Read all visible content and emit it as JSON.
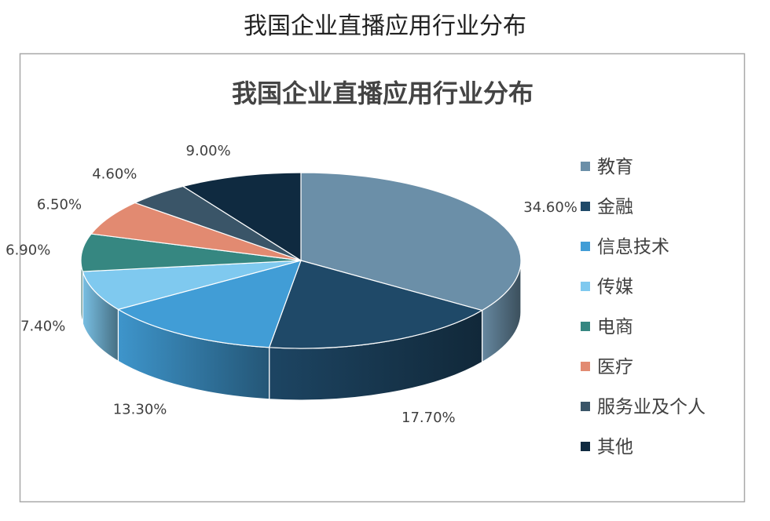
{
  "page_title": "我国企业直播应用行业分布",
  "chart_data": {
    "type": "pie",
    "title": "我国企业直播应用行业分布",
    "legend_position": "right",
    "slices": [
      {
        "name": "教育",
        "value": 34.6,
        "label": "34.60%",
        "color": "#6b8fa8"
      },
      {
        "name": "金融",
        "value": 17.7,
        "label": "17.70%",
        "color": "#1f4968"
      },
      {
        "name": "信息技术",
        "value": 13.3,
        "label": "13.30%",
        "color": "#419dd6"
      },
      {
        "name": "传媒",
        "value": 7.4,
        "label": "7.40%",
        "color": "#7fc9ef"
      },
      {
        "name": "电商",
        "value": 6.9,
        "label": "6.90%",
        "color": "#368781"
      },
      {
        "name": "医疗",
        "value": 6.5,
        "label": "6.50%",
        "color": "#e28a71"
      },
      {
        "name": "服务业及个人",
        "value": 4.6,
        "label": "4.60%",
        "color": "#3a5568"
      },
      {
        "name": "其他",
        "value": 9.0,
        "label": "9.00%",
        "color": "#0f2a40"
      }
    ]
  }
}
